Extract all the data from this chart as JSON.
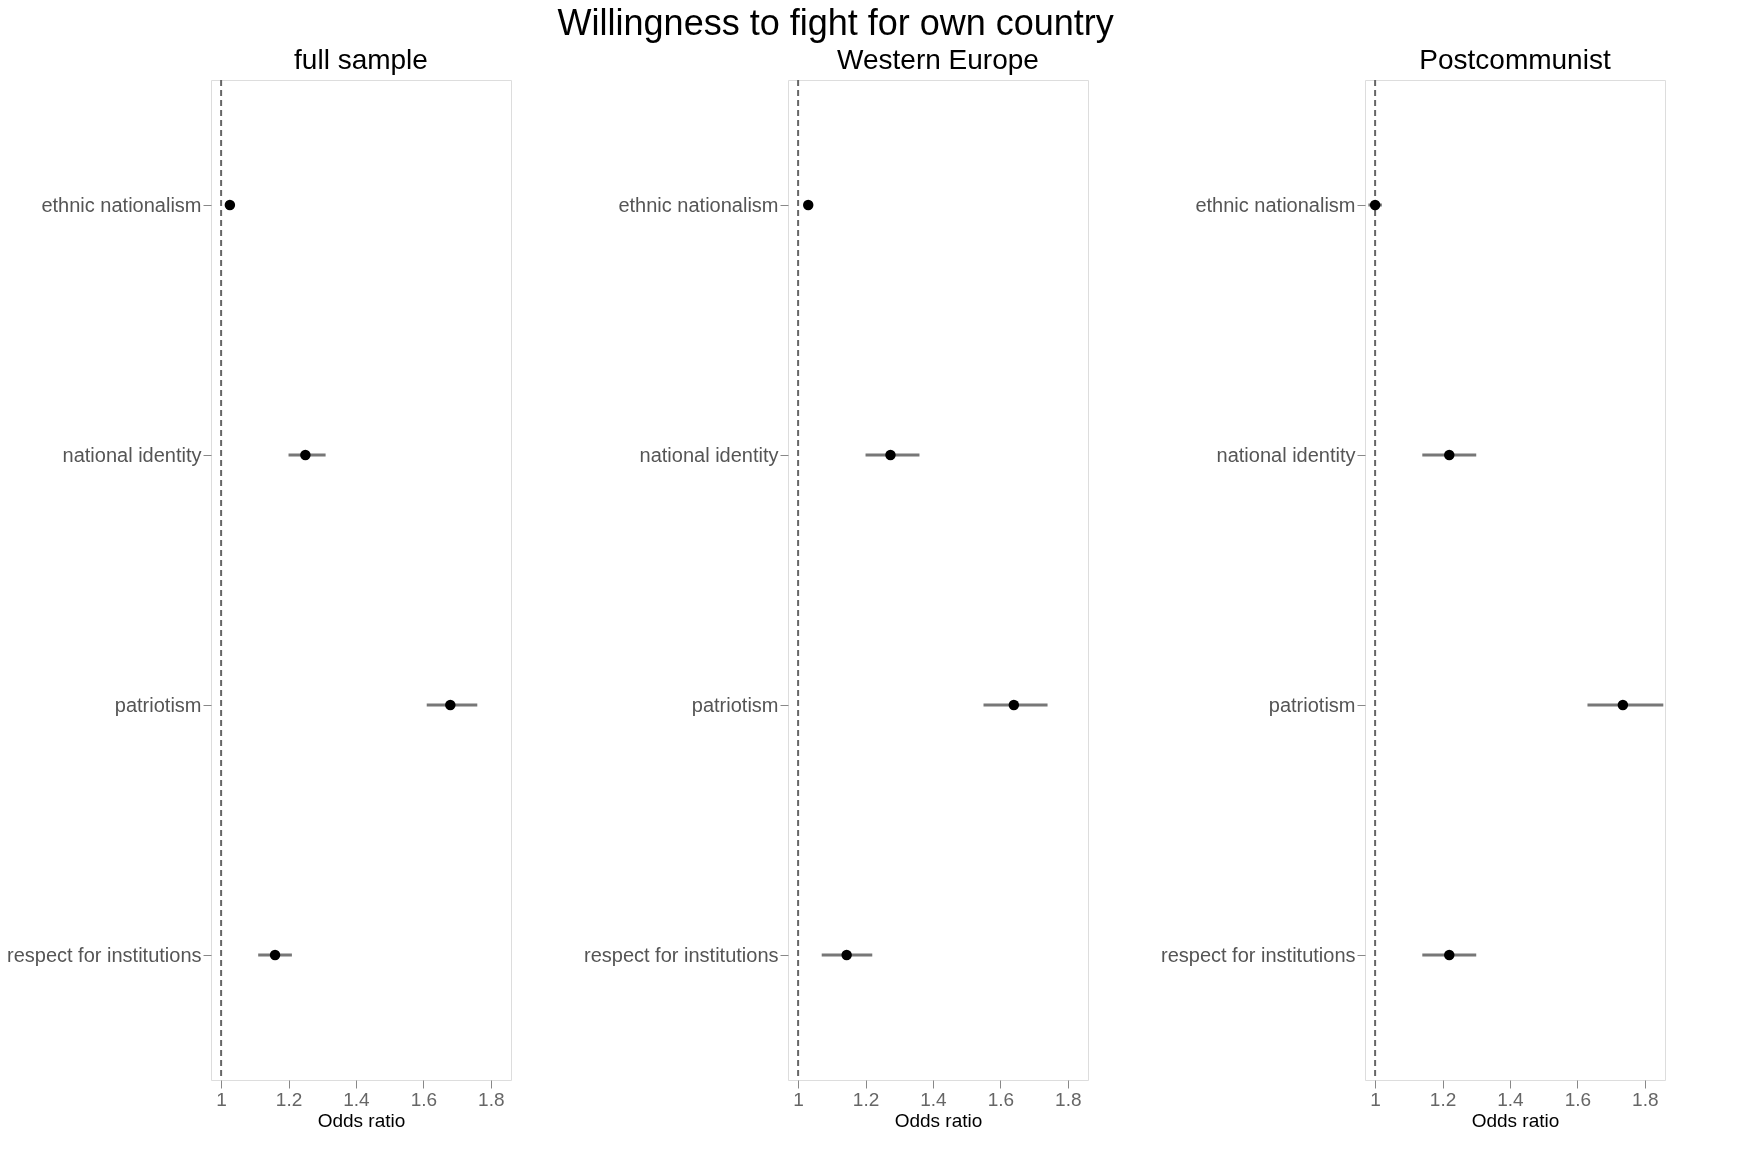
{
  "chart_data": [
    {
      "type": "scatter",
      "orientation": "horizontal",
      "title": "full sample",
      "annotations": [
        "Willingness to fight for own country"
      ],
      "xlabel": "Odds ratio",
      "categories": [
        "ethnic nationalism",
        "national identity",
        "patriotism",
        "respect for institutions"
      ],
      "values": [
        1.026,
        1.25,
        1.68,
        1.16
      ],
      "errors": [
        null,
        [
          1.2,
          1.31
        ],
        [
          1.61,
          1.76
        ],
        [
          1.11,
          1.21
        ]
      ],
      "color": "#000000",
      "marker": "circle",
      "xlim": [
        0.97,
        1.86
      ],
      "xticks": [
        1,
        1.2,
        1.4,
        1.6,
        1.8
      ],
      "grid": false,
      "ref_lines": [
        {
          "axis": "x",
          "value": 1,
          "line_style": "dashed",
          "color": "#666666"
        }
      ]
    },
    {
      "type": "scatter",
      "orientation": "horizontal",
      "title": "Western Europe",
      "xlabel": "Odds ratio",
      "categories": [
        "ethnic nationalism",
        "national identity",
        "patriotism",
        "respect for institutions"
      ],
      "values": [
        1.03,
        1.274,
        1.64,
        1.144
      ],
      "errors": [
        null,
        [
          1.2,
          1.36
        ],
        [
          1.55,
          1.74
        ],
        [
          1.07,
          1.22
        ]
      ],
      "color": "#000000",
      "marker": "circle",
      "xlim": [
        0.97,
        1.86
      ],
      "xticks": [
        1,
        1.2,
        1.4,
        1.6,
        1.8
      ],
      "grid": false,
      "ref_lines": [
        {
          "axis": "x",
          "value": 1,
          "line_style": "dashed",
          "color": "#666666"
        }
      ]
    },
    {
      "type": "scatter",
      "orientation": "horizontal",
      "title": "Postcommunist",
      "xlabel": "Odds ratio",
      "categories": [
        "ethnic nationalism",
        "national identity",
        "patriotism",
        "respect for institutions"
      ],
      "values": [
        1.0,
        1.22,
        1.735,
        1.22
      ],
      "errors": [
        [
          0.98,
          1.02
        ],
        [
          1.14,
          1.3
        ],
        [
          1.63,
          1.855
        ],
        [
          1.14,
          1.3
        ]
      ],
      "color": "#000000",
      "marker": "circle",
      "xlim": [
        0.97,
        1.86
      ],
      "xticks": [
        1,
        1.2,
        1.4,
        1.6,
        1.8
      ],
      "grid": false,
      "ref_lines": [
        {
          "axis": "x",
          "value": 1,
          "line_style": "dashed",
          "color": "#666666"
        }
      ]
    }
  ]
}
